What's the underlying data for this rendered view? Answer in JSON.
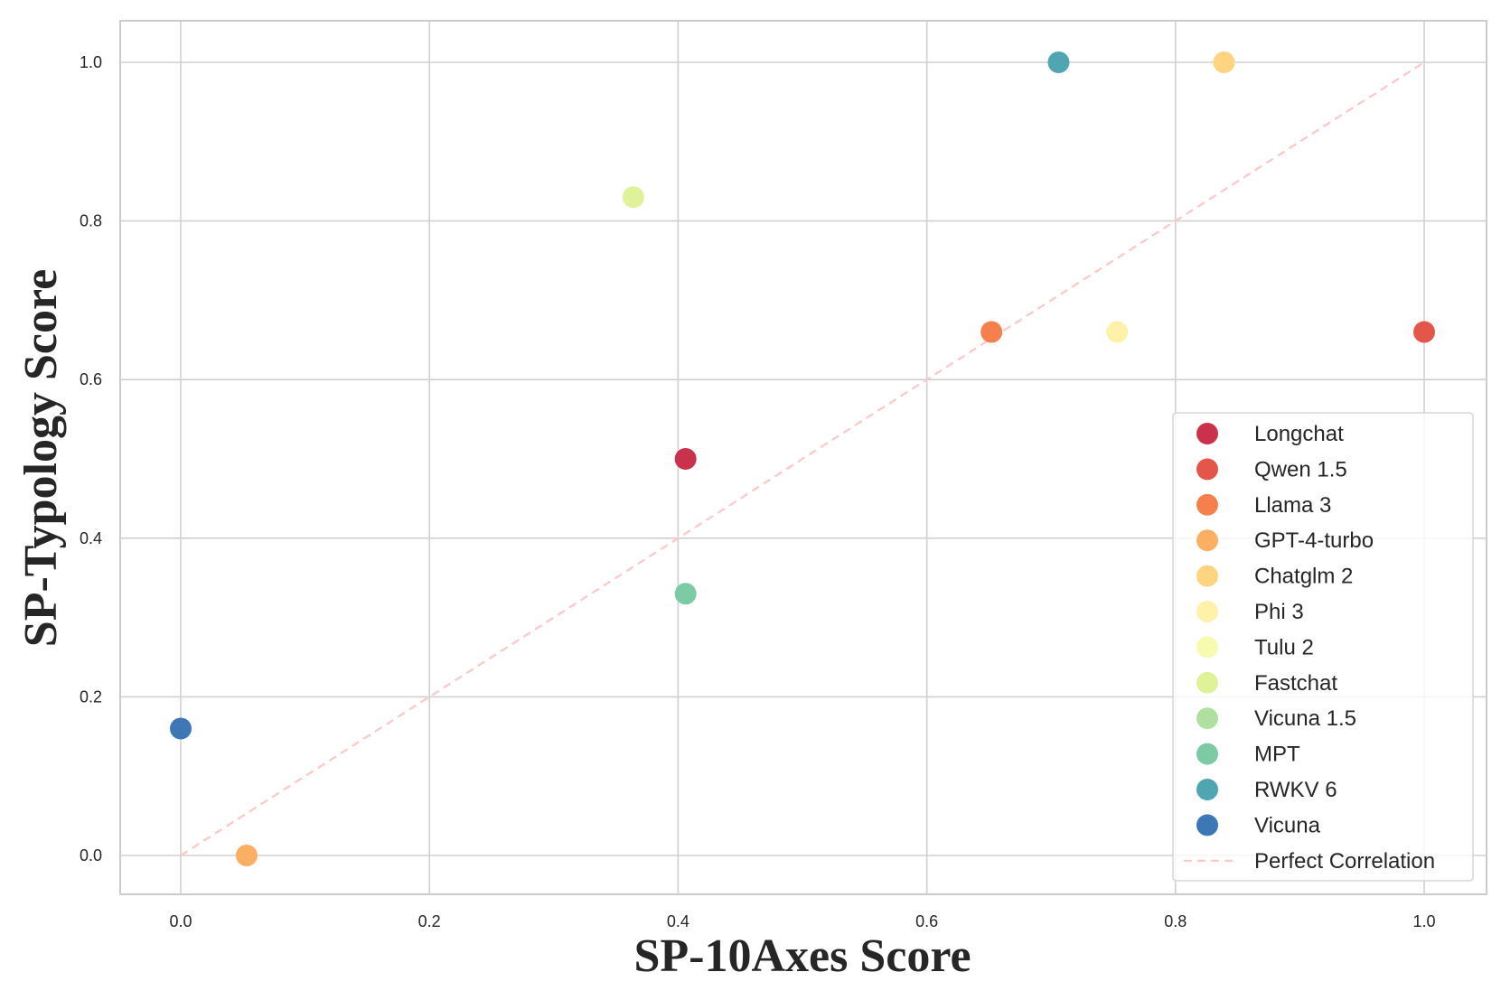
{
  "chart_data": {
    "type": "scatter",
    "title": "",
    "xlabel": "SP-10Axes Score",
    "ylabel": "SP-Typology Score",
    "xlim": [
      -0.05,
      1.05
    ],
    "ylim": [
      -0.05,
      1.05
    ],
    "xticks": [
      "0.0",
      "0.2",
      "0.4",
      "0.6",
      "0.8",
      "1.0"
    ],
    "yticks": [
      "0.0",
      "0.2",
      "0.4",
      "0.6",
      "0.8",
      "1.0"
    ],
    "grid": true,
    "legend_position": "lower-right",
    "series": [
      {
        "name": "Longchat",
        "color": "#c9314c",
        "x": 0.406,
        "y": 0.5
      },
      {
        "name": "Qwen 1.5",
        "color": "#e5564a",
        "x": 1.0,
        "y": 0.66
      },
      {
        "name": "Llama 3",
        "color": "#f6804d",
        "x": 0.652,
        "y": 0.66
      },
      {
        "name": "GPT-4-turbo",
        "color": "#fcae62",
        "x": 0.053,
        "y": 0.0
      },
      {
        "name": "Chatglm 2",
        "color": "#fed480",
        "x": 0.839,
        "y": 1.0
      },
      {
        "name": "Phi 3",
        "color": "#fef2a8",
        "x": 0.753,
        "y": 0.66
      },
      {
        "name": "Tulu 2",
        "color": "#f6fbb0",
        "x": null,
        "y": null
      },
      {
        "name": "Fastchat",
        "color": "#dff299",
        "x": 0.364,
        "y": 0.83
      },
      {
        "name": "Vicuna 1.5",
        "color": "#b0dfa2",
        "x": null,
        "y": null
      },
      {
        "name": "MPT",
        "color": "#7ccba4",
        "x": 0.406,
        "y": 0.33
      },
      {
        "name": "RWKV 6",
        "color": "#4fa6b1",
        "x": 0.706,
        "y": 1.0
      },
      {
        "name": "Vicuna",
        "color": "#3e77b6",
        "x": 0.0,
        "y": 0.16
      }
    ],
    "reference_line": {
      "name": "Perfect Correlation",
      "color": "#ffc6c6",
      "x": [
        0,
        1
      ],
      "y": [
        0,
        1
      ]
    }
  }
}
